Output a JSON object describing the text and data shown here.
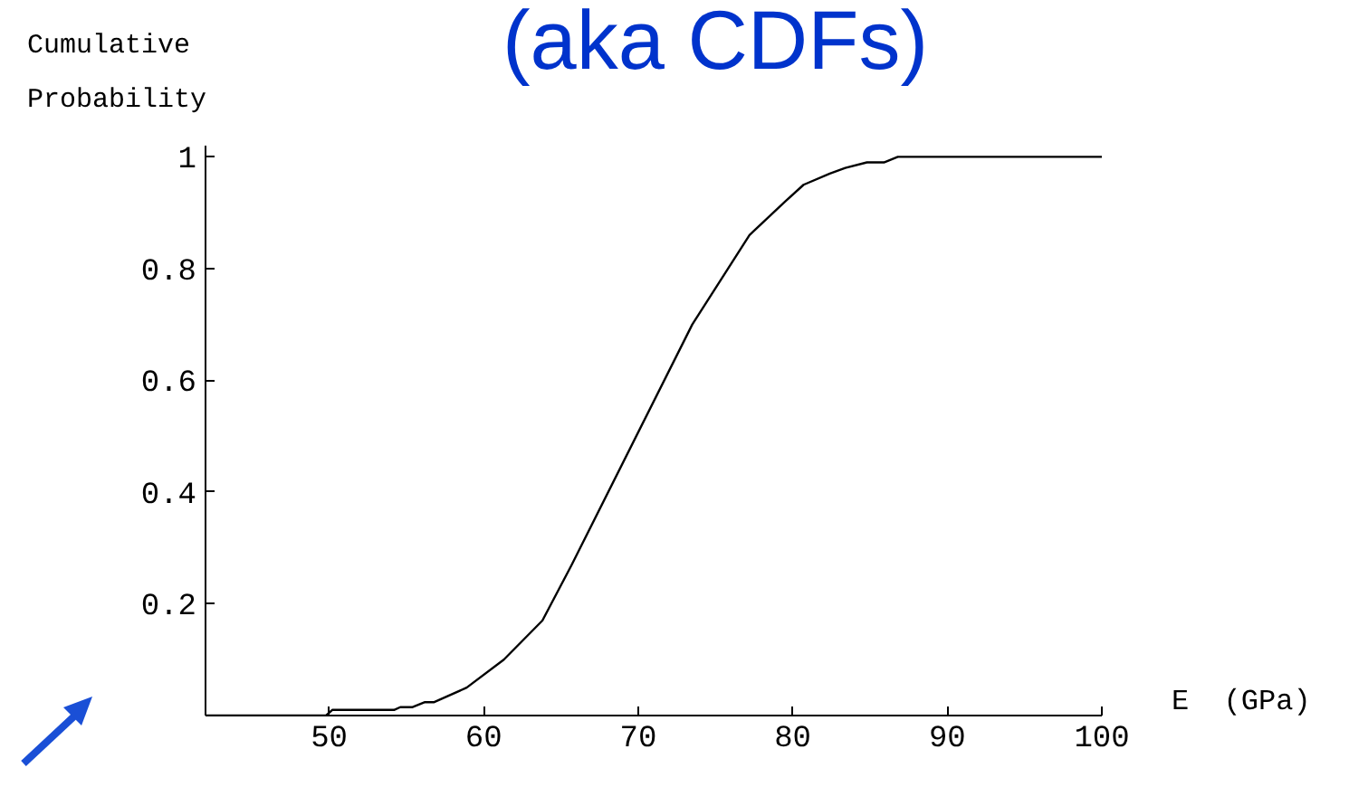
{
  "chart_data": {
    "type": "line",
    "title": "(aka CDFs)",
    "xlabel": "E (GPa)",
    "ylabel": "Cumulative Probability",
    "x": [
      42,
      49.8,
      50.2,
      54.2,
      54.6,
      55.4,
      56.2,
      56.8,
      58.9,
      61.3,
      63.8,
      65.7,
      73.5,
      77.2,
      79.5,
      80.7,
      82.4,
      83.4,
      84.8,
      85.9,
      86.8,
      100
    ],
    "series": [
      {
        "color": "#000000",
        "values": [
          0,
          0,
          0.01,
          0.01,
          0.015,
          0.015,
          0.024,
          0.024,
          0.05,
          0.1,
          0.17,
          0.27,
          0.7,
          0.86,
          0.92,
          0.95,
          0.97,
          0.98,
          0.99,
          0.99,
          1,
          1
        ]
      }
    ],
    "xlim": [
      42,
      100
    ],
    "ylim": [
      0,
      1.02
    ],
    "xticks": [
      50,
      60,
      70,
      80,
      90,
      100
    ],
    "yticks": [
      0.2,
      0.4,
      0.6,
      0.8,
      1
    ],
    "grid": false,
    "marker": "none",
    "line_style": "solid"
  }
}
